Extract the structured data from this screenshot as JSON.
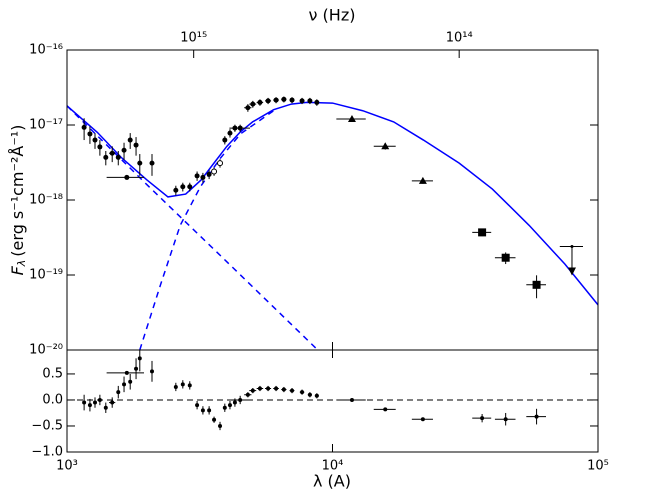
{
  "chart_data": {
    "type": "scatter",
    "xlabel": "λ (A)",
    "x2label": "ν (Hz)",
    "ylabel": {
      "symbol": "F",
      "sub": "λ",
      "unit": "(erg s⁻¹cm⁻²Å⁻¹)"
    },
    "xscale": "log",
    "yscale": "log",
    "xlim": [
      1000,
      100000
    ],
    "xticks": [
      {
        "value": 1000,
        "label": "10³"
      },
      {
        "value": 10000,
        "label": "10⁴"
      },
      {
        "value": 100000,
        "label": "10⁵"
      }
    ],
    "x2lim": [
      3000000000000000.0,
      30000000000000.0
    ],
    "x2ticks": [
      {
        "value": 1000000000000000.0,
        "label": "10¹⁵"
      },
      {
        "value": 100000000000000.0,
        "label": "10¹⁴"
      }
    ],
    "ylim": [
      1e-20,
      1e-16
    ],
    "yticks": [
      {
        "value": 1e-20,
        "label": "10⁻²⁰"
      },
      {
        "value": 1e-19,
        "label": "10⁻¹⁹"
      },
      {
        "value": 1e-18,
        "label": "10⁻¹⁸"
      },
      {
        "value": 1e-17,
        "label": "10⁻¹⁷"
      },
      {
        "value": 1e-16,
        "label": "10⁻¹⁶"
      }
    ],
    "models": [
      {
        "style": "solid",
        "color": "#0000ff",
        "x": [
          1000,
          1300,
          1600,
          2000,
          2400,
          2800,
          3200,
          3600,
          4000,
          4500,
          5000,
          6000,
          7000,
          8000,
          10000,
          13000,
          17000,
          22000,
          30000,
          40000,
          55000,
          75000,
          100000
        ],
        "values": [
          1.8e-17,
          8e-18,
          3.7e-18,
          1.85e-18,
          1.1e-18,
          1.2e-18,
          1.85e-18,
          3.2e-18,
          5.2e-18,
          8.1e-18,
          1.1e-17,
          1.6e-17,
          1.9e-17,
          2e-17,
          1.96e-17,
          1.55e-17,
          1.1e-17,
          6.3e-18,
          3.1e-18,
          1.4e-18,
          4.6e-19,
          1.4e-19,
          4e-20
        ]
      },
      {
        "style": "dashed",
        "color": "#0000ff",
        "x": [
          1000,
          2000,
          4000,
          8800
        ],
        "values": [
          1.8e-17,
          1.6e-18,
          1.5e-19,
          1e-20
        ]
      },
      {
        "style": "dashed",
        "color": "#0000ff",
        "x": [
          1880,
          2250,
          2670,
          3180,
          3780,
          4500,
          6000
        ],
        "values": [
          1e-20,
          7.4e-20,
          4.6e-19,
          1.5e-18,
          3.6e-18,
          7.6e-18,
          1.55e-17
        ]
      }
    ],
    "points": [
      {
        "marker": "circle",
        "color": "#000000",
        "x": [
          1160,
          1220,
          1275,
          1330,
          1400,
          1480,
          1560,
          1640,
          1680,
          1730,
          1820,
          1880,
          2090,
          2570,
          2730,
          2900,
          3090,
          3250,
          3430,
          3930,
          4110,
          4290,
          4490,
          4800,
          5010,
          5330,
          5720,
          6130,
          6560,
          7040,
          7680,
          8220,
          8730
        ],
        "values": [
          9.3e-18,
          7.6e-18,
          6.3e-18,
          5.1e-18,
          3.7e-18,
          4.2e-18,
          3.7e-18,
          4.6e-18,
          2e-18,
          6.3e-18,
          5.4e-18,
          3.1e-18,
          3.1e-18,
          1.35e-18,
          1.5e-18,
          1.5e-18,
          2.1e-18,
          2e-18,
          2.2e-18,
          6.3e-18,
          7.8e-18,
          9.1e-18,
          9.1e-18,
          1.7e-17,
          1.9e-17,
          2e-17,
          2.1e-17,
          2.15e-17,
          2.2e-17,
          2.15e-17,
          2.1e-17,
          2.1e-17,
          2e-17
        ],
        "yerr": [
          3e-18,
          2e-18,
          1.5e-18,
          1.2e-18,
          8e-19,
          1e-18,
          8e-19,
          1.2e-18,
          null,
          1.5e-18,
          1.5e-18,
          1e-18,
          1e-18,
          2e-19,
          2e-19,
          2e-19,
          3e-19,
          3e-19,
          3e-19,
          8e-19,
          1e-18,
          1e-18,
          1e-18,
          2e-18,
          2e-18,
          2e-18,
          2e-18,
          2e-18,
          2e-18,
          2e-18,
          2e-18,
          2e-18,
          2e-18
        ],
        "xerr": [
          null,
          null,
          null,
          null,
          null,
          40,
          null,
          null,
          270,
          null,
          null,
          null,
          null,
          null,
          null,
          null,
          null,
          null,
          null,
          null,
          null,
          null,
          400,
          150,
          150,
          150,
          150,
          150,
          150,
          150,
          150,
          150,
          150
        ]
      },
      {
        "marker": "open-circle",
        "color": "#000000",
        "x": [
          3580,
          3770
        ],
        "values": [
          2.4e-18,
          3.1e-18
        ],
        "yerr": [
          3e-19,
          4e-19
        ],
        "xerr": [
          null,
          null
        ]
      },
      {
        "marker": "triangle",
        "color": "#000000",
        "x": [
          11840,
          15800,
          21900
        ],
        "values": [
          1.2e-17,
          5.2e-18,
          1.8e-18
        ],
        "yerr": [
          1e-18,
          5e-19,
          1.5e-19
        ],
        "xerr": [
          1500,
          1500,
          2000
        ]
      },
      {
        "marker": "square",
        "color": "#000000",
        "x": [
          36600,
          44900,
          58700
        ],
        "values": [
          3.7e-19,
          1.7e-19,
          7.4e-20
        ],
        "yerr": [
          4e-20,
          3e-20,
          2.5e-20
        ],
        "xerr": [
          3000,
          4000,
          5000
        ]
      },
      {
        "marker": "upper-limit",
        "color": "#000000",
        "x": [
          79800
        ],
        "values": [
          2.4e-19
        ],
        "yerr": [
          null
        ],
        "xerr": [
          8000
        ]
      }
    ],
    "residuals": {
      "ylim": [
        -1.0,
        0.96
      ],
      "yticks": [
        {
          "value": -1,
          "label": "−1.0"
        },
        {
          "value": -0.5,
          "label": "−0.5"
        },
        {
          "value": 0,
          "label": "0.0"
        },
        0.5
      ],
      "hline": 0,
      "x": [
        1160,
        1220,
        1275,
        1330,
        1400,
        1480,
        1560,
        1640,
        1680,
        1730,
        1820,
        1880,
        2090,
        2570,
        2730,
        2900,
        3090,
        3250,
        3430,
        3930,
        4110,
        4290,
        4490,
        4800,
        5010,
        5330,
        5720,
        6130,
        6560,
        7040,
        7680,
        8220,
        8730,
        3580,
        3770,
        11840,
        15800,
        21900,
        36600,
        44900,
        58700
      ],
      "values": [
        -0.05,
        -0.1,
        -0.05,
        0.0,
        -0.15,
        -0.05,
        0.15,
        0.3,
        0.52,
        0.35,
        0.6,
        0.8,
        0.55,
        0.25,
        0.3,
        0.28,
        -0.1,
        -0.2,
        -0.2,
        -0.15,
        -0.1,
        -0.05,
        0.0,
        0.1,
        0.18,
        0.22,
        0.22,
        0.22,
        0.2,
        0.18,
        0.15,
        0.1,
        0.08,
        -0.38,
        -0.5,
        0.0,
        -0.18,
        -0.37,
        -0.35,
        -0.37,
        -0.32
      ],
      "yerr": [
        0.15,
        0.12,
        0.1,
        0.1,
        0.1,
        0.1,
        0.12,
        0.15,
        null,
        0.15,
        0.2,
        0.25,
        0.2,
        0.08,
        0.08,
        0.08,
        0.08,
        0.08,
        0.08,
        0.08,
        0.08,
        0.08,
        0.08,
        0.05,
        0.05,
        0.05,
        0.05,
        0.05,
        0.05,
        0.05,
        0.05,
        0.05,
        0.05,
        0.06,
        0.08,
        null,
        null,
        null,
        0.08,
        0.12,
        0.15
      ],
      "xerr": [
        null,
        null,
        null,
        null,
        null,
        40,
        null,
        null,
        270,
        null,
        null,
        null,
        null,
        null,
        null,
        null,
        null,
        null,
        null,
        null,
        null,
        null,
        400,
        150,
        150,
        150,
        150,
        150,
        150,
        150,
        150,
        150,
        150,
        null,
        null,
        1500,
        1500,
        2000,
        3000,
        4000,
        5000
      ]
    }
  }
}
